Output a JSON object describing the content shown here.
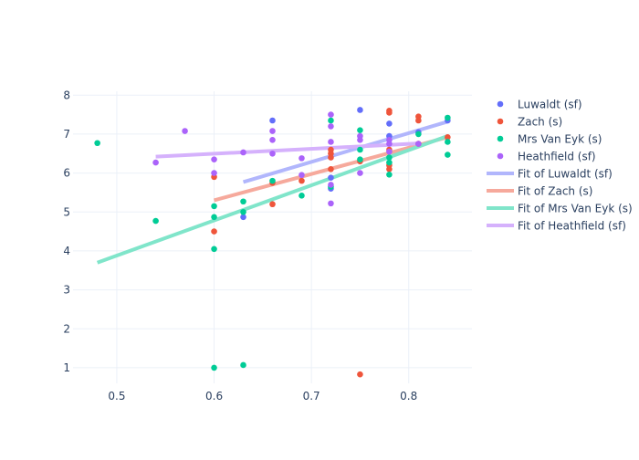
{
  "chart_data": {
    "type": "scatter",
    "title": "",
    "xlabel": "",
    "ylabel": "",
    "xlim": [
      0.455,
      0.865
    ],
    "ylim": [
      0.6,
      8.1
    ],
    "grid": true,
    "legend_position": "right",
    "x_ticks": [
      0.5,
      0.6,
      0.7,
      0.8
    ],
    "x_tick_labels": [
      "0.5",
      "0.6",
      "0.7",
      "0.8"
    ],
    "y_ticks": [
      1,
      2,
      3,
      4,
      5,
      6,
      7,
      8
    ],
    "y_tick_labels": [
      "1",
      "2",
      "3",
      "4",
      "5",
      "6",
      "7",
      "8"
    ],
    "series": [
      {
        "name": "Luwaldt (sf)",
        "mode": "markers",
        "color": "#636efa",
        "points": [
          [
            0.63,
            4.87
          ],
          [
            0.66,
            7.35
          ],
          [
            0.72,
            5.88
          ],
          [
            0.72,
            5.6
          ],
          [
            0.75,
            7.62
          ],
          [
            0.78,
            7.27
          ],
          [
            0.78,
            6.95
          ],
          [
            0.81,
            7.05
          ],
          [
            0.84,
            7.35
          ]
        ]
      },
      {
        "name": "Zach (s)",
        "mode": "markers",
        "color": "#EF553B",
        "points": [
          [
            0.6,
            5.9
          ],
          [
            0.6,
            4.5
          ],
          [
            0.66,
            5.2
          ],
          [
            0.66,
            5.75
          ],
          [
            0.69,
            5.8
          ],
          [
            0.72,
            6.6
          ],
          [
            0.72,
            6.5
          ],
          [
            0.72,
            6.4
          ],
          [
            0.72,
            6.1
          ],
          [
            0.75,
            6.3
          ],
          [
            0.75,
            0.83
          ],
          [
            0.78,
            7.6
          ],
          [
            0.78,
            7.55
          ],
          [
            0.78,
            6.6
          ],
          [
            0.78,
            6.2
          ],
          [
            0.78,
            6.1
          ],
          [
            0.81,
            7.45
          ],
          [
            0.81,
            7.35
          ],
          [
            0.81,
            6.75
          ],
          [
            0.84,
            6.92
          ]
        ]
      },
      {
        "name": "Mrs Van Eyk (s)",
        "mode": "markers",
        "color": "#00cc96",
        "points": [
          [
            0.48,
            6.77
          ],
          [
            0.54,
            4.77
          ],
          [
            0.6,
            5.15
          ],
          [
            0.6,
            4.87
          ],
          [
            0.6,
            4.05
          ],
          [
            0.6,
            1.0
          ],
          [
            0.63,
            5.27
          ],
          [
            0.63,
            5.0
          ],
          [
            0.63,
            1.07
          ],
          [
            0.66,
            5.8
          ],
          [
            0.69,
            5.42
          ],
          [
            0.72,
            7.35
          ],
          [
            0.72,
            5.65
          ],
          [
            0.75,
            7.1
          ],
          [
            0.75,
            6.6
          ],
          [
            0.75,
            6.35
          ],
          [
            0.78,
            6.4
          ],
          [
            0.78,
            6.27
          ],
          [
            0.78,
            5.96
          ],
          [
            0.81,
            7.0
          ],
          [
            0.84,
            7.42
          ],
          [
            0.84,
            6.8
          ],
          [
            0.84,
            6.47
          ]
        ]
      },
      {
        "name": "Heathfield (sf)",
        "mode": "markers",
        "color": "#ab63fa",
        "points": [
          [
            0.54,
            6.27
          ],
          [
            0.57,
            7.08
          ],
          [
            0.6,
            6.35
          ],
          [
            0.6,
            6.0
          ],
          [
            0.63,
            6.53
          ],
          [
            0.66,
            7.08
          ],
          [
            0.66,
            6.85
          ],
          [
            0.66,
            6.5
          ],
          [
            0.69,
            6.38
          ],
          [
            0.69,
            5.95
          ],
          [
            0.72,
            7.5
          ],
          [
            0.72,
            7.2
          ],
          [
            0.72,
            6.8
          ],
          [
            0.72,
            5.7
          ],
          [
            0.72,
            5.22
          ],
          [
            0.75,
            6.95
          ],
          [
            0.75,
            6.85
          ],
          [
            0.75,
            6.0
          ],
          [
            0.78,
            6.85
          ],
          [
            0.78,
            6.75
          ],
          [
            0.78,
            6.55
          ],
          [
            0.81,
            6.75
          ]
        ]
      },
      {
        "name": "Fit of Luwaldt (sf)",
        "mode": "line",
        "color": "#b1b6fc",
        "points": [
          [
            0.63,
            5.77
          ],
          [
            0.84,
            7.32
          ]
        ]
      },
      {
        "name": "Fit of Zach (s)",
        "mode": "line",
        "color": "#f6a99c",
        "points": [
          [
            0.6,
            5.3
          ],
          [
            0.84,
            6.92
          ]
        ]
      },
      {
        "name": "Fit of Mrs Van Eyk (s)",
        "mode": "line",
        "color": "#80e5ca",
        "points": [
          [
            0.48,
            3.7
          ],
          [
            0.84,
            6.95
          ]
        ]
      },
      {
        "name": "Fit of Heathfield (sf)",
        "mode": "line",
        "color": "#d5b1fc",
        "points": [
          [
            0.54,
            6.42
          ],
          [
            0.81,
            6.76
          ]
        ]
      }
    ]
  }
}
